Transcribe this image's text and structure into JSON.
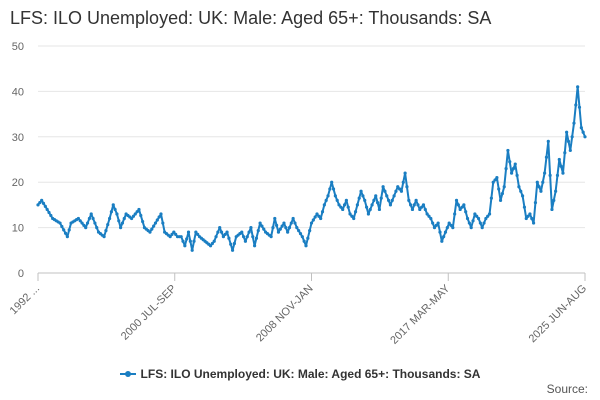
{
  "chart_data": {
    "type": "line",
    "title": "LFS: ILO Unemployed: UK: Male: Aged 65+: Thousands: SA",
    "xlabel": "",
    "ylabel": "",
    "ylim": [
      0,
      50
    ],
    "y_ticks": [
      "0",
      "10",
      "20",
      "30",
      "40",
      "50"
    ],
    "x_tick_labels": [
      "1992 ...",
      "2000 JUL-SEP",
      "2008 NOV-JAN",
      "2017 MAR-MAY",
      "2025 JUN-AUG"
    ],
    "grid": true,
    "legend": "bottom-center",
    "series": [
      {
        "name": "LFS: ILO Unemployed: UK: Male: Aged 65+: Thousands: SA",
        "color": "#1a7ec2",
        "anchors": [
          [
            0,
            15
          ],
          [
            2,
            16
          ],
          [
            5,
            14
          ],
          [
            8,
            12
          ],
          [
            12,
            11
          ],
          [
            16,
            8
          ],
          [
            18,
            11
          ],
          [
            22,
            12
          ],
          [
            26,
            10
          ],
          [
            29,
            13
          ],
          [
            31,
            11
          ],
          [
            33,
            9
          ],
          [
            36,
            8
          ],
          [
            39,
            12
          ],
          [
            41,
            15
          ],
          [
            43,
            13
          ],
          [
            45,
            10
          ],
          [
            48,
            13
          ],
          [
            51,
            12
          ],
          [
            55,
            14
          ],
          [
            58,
            10
          ],
          [
            61,
            9
          ],
          [
            64,
            11
          ],
          [
            67,
            13
          ],
          [
            69,
            9
          ],
          [
            72,
            8
          ],
          [
            74,
            9
          ],
          [
            76,
            8
          ],
          [
            78,
            8
          ],
          [
            80,
            6
          ],
          [
            82,
            9
          ],
          [
            84,
            5
          ],
          [
            86,
            9
          ],
          [
            88,
            8
          ],
          [
            91,
            7
          ],
          [
            94,
            6
          ],
          [
            96,
            7
          ],
          [
            99,
            10
          ],
          [
            101,
            8
          ],
          [
            103,
            9
          ],
          [
            106,
            5
          ],
          [
            108,
            8
          ],
          [
            111,
            9
          ],
          [
            113,
            7
          ],
          [
            116,
            10
          ],
          [
            118,
            6
          ],
          [
            121,
            11
          ],
          [
            124,
            9
          ],
          [
            127,
            8
          ],
          [
            129,
            12
          ],
          [
            131,
            9
          ],
          [
            134,
            11
          ],
          [
            136,
            9
          ],
          [
            139,
            12
          ],
          [
            141,
            10
          ],
          [
            144,
            8
          ],
          [
            146,
            6
          ],
          [
            149,
            11
          ],
          [
            152,
            13
          ],
          [
            154,
            12
          ],
          [
            156,
            15
          ],
          [
            158,
            17
          ],
          [
            160,
            20
          ],
          [
            162,
            17
          ],
          [
            164,
            15
          ],
          [
            166,
            14
          ],
          [
            168,
            16
          ],
          [
            170,
            13
          ],
          [
            172,
            12
          ],
          [
            174,
            15
          ],
          [
            176,
            18
          ],
          [
            178,
            16
          ],
          [
            180,
            13
          ],
          [
            182,
            15
          ],
          [
            184,
            17
          ],
          [
            186,
            14
          ],
          [
            188,
            19
          ],
          [
            190,
            17
          ],
          [
            192,
            15
          ],
          [
            194,
            17
          ],
          [
            196,
            19
          ],
          [
            198,
            18
          ],
          [
            200,
            22
          ],
          [
            202,
            16
          ],
          [
            204,
            14
          ],
          [
            206,
            16
          ],
          [
            208,
            14
          ],
          [
            210,
            15
          ],
          [
            212,
            13
          ],
          [
            214,
            12
          ],
          [
            216,
            10
          ],
          [
            218,
            11
          ],
          [
            220,
            7
          ],
          [
            222,
            9
          ],
          [
            224,
            11
          ],
          [
            226,
            10
          ],
          [
            228,
            16
          ],
          [
            230,
            14
          ],
          [
            232,
            15
          ],
          [
            234,
            12
          ],
          [
            236,
            10
          ],
          [
            238,
            13
          ],
          [
            240,
            12
          ],
          [
            242,
            10
          ],
          [
            244,
            12
          ],
          [
            246,
            13
          ],
          [
            248,
            20
          ],
          [
            250,
            21
          ],
          [
            252,
            16
          ],
          [
            254,
            19
          ],
          [
            256,
            27
          ],
          [
            258,
            22
          ],
          [
            260,
            24
          ],
          [
            262,
            19
          ],
          [
            264,
            17
          ],
          [
            266,
            12
          ],
          [
            268,
            13
          ],
          [
            270,
            11
          ],
          [
            272,
            20
          ],
          [
            274,
            18
          ],
          [
            276,
            22
          ],
          [
            278,
            29
          ],
          [
            280,
            14
          ],
          [
            282,
            18
          ],
          [
            284,
            25
          ],
          [
            286,
            22
          ],
          [
            288,
            31
          ],
          [
            290,
            27
          ],
          [
            292,
            33
          ],
          [
            294,
            41
          ],
          [
            296,
            32
          ],
          [
            298,
            30
          ]
        ]
      }
    ]
  },
  "credits": "Source:"
}
